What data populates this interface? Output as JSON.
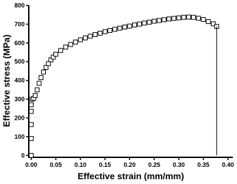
{
  "chart_data": {
    "type": "scatter",
    "x_label": "Effective strain (mm/mm)",
    "y_label": "Effective stress (MPa)",
    "xlim": [
      -0.005,
      0.41
    ],
    "ylim": [
      -10,
      800
    ],
    "xticks": [
      {
        "value": 0,
        "label": "0.00"
      },
      0.05,
      {
        "value": 0.1,
        "label": "0.10"
      },
      0.15,
      {
        "value": 0.2,
        "label": "0.20"
      },
      0.25,
      {
        "value": 0.3,
        "label": "0.30"
      },
      0.35,
      {
        "value": 0.4,
        "label": "0.40"
      }
    ],
    "yticks": [
      0,
      100,
      200,
      300,
      400,
      500,
      600,
      700,
      800
    ],
    "series": [
      {
        "color": "#000000",
        "marker": "square",
        "x": [
          0,
          0,
          0,
          0,
          0,
          0.002,
          0.005,
          0.008,
          0.012,
          0.016,
          0.02,
          0.025,
          0.03,
          0.035,
          0.04,
          0.045,
          0.05,
          0.06,
          0.07,
          0.08,
          0.09,
          0.1,
          0.11,
          0.12,
          0.13,
          0.14,
          0.15,
          0.16,
          0.17,
          0.18,
          0.19,
          0.2,
          0.21,
          0.22,
          0.23,
          0.24,
          0.25,
          0.26,
          0.27,
          0.28,
          0.29,
          0.3,
          0.31,
          0.32,
          0.33,
          0.34,
          0.35,
          0.36,
          0.37,
          0.377
        ],
        "values": [
          0,
          90,
          165,
          235,
          270,
          300,
          305,
          320,
          350,
          385,
          415,
          445,
          470,
          490,
          510,
          525,
          540,
          560,
          578,
          592,
          605,
          617,
          627,
          636,
          645,
          652,
          660,
          667,
          673,
          679,
          685,
          690,
          696,
          701,
          706,
          711,
          716,
          720,
          724,
          728,
          731,
          734,
          737,
          738,
          737,
          732,
          725,
          714,
          702,
          688
        ]
      },
      {
        "color": "#000000",
        "marker": "none",
        "x": [
          0.377,
          0.377
        ],
        "values": [
          688,
          0
        ]
      }
    ]
  }
}
